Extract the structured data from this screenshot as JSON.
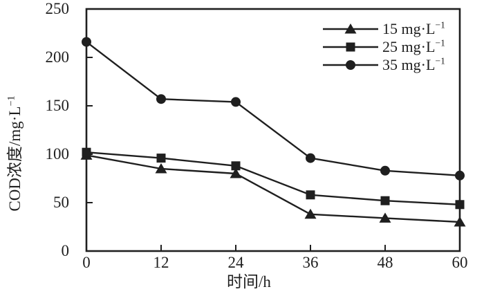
{
  "chart_data": {
    "type": "line",
    "title": "",
    "xlabel": "时间/h",
    "ylabel": "COD浓度/mg·L⁻¹",
    "xlim": [
      0,
      60
    ],
    "ylim": [
      0,
      250
    ],
    "x_ticks": [
      0,
      12,
      24,
      36,
      48,
      60
    ],
    "y_ticks": [
      0,
      50,
      100,
      150,
      200,
      250
    ],
    "grid": false,
    "legend_position": "top-right-inside",
    "line_color": "#1f1f1f",
    "background_color": "#ffffff",
    "x": [
      0,
      12,
      24,
      36,
      48,
      60
    ],
    "series": [
      {
        "name": "15 mg·L⁻¹",
        "marker": "triangle",
        "values": [
          99,
          85,
          80,
          38,
          34,
          30
        ]
      },
      {
        "name": "25 mg·L⁻¹",
        "marker": "square",
        "values": [
          102,
          96,
          88,
          58,
          52,
          48
        ]
      },
      {
        "name": "35 mg·L⁻¹",
        "marker": "circle",
        "values": [
          216,
          157,
          154,
          96,
          83,
          78
        ]
      }
    ]
  },
  "axes": {
    "x_tick_labels": [
      "0",
      "12",
      "24",
      "36",
      "48",
      "60"
    ],
    "y_tick_labels": [
      "0",
      "50",
      "100",
      "150",
      "200",
      "250"
    ],
    "x_title": "时间/h",
    "y_title_prefix": "COD浓度/mg·L",
    "y_title_sup": "−1"
  },
  "legend": {
    "items": [
      {
        "prefix": "15 mg·L",
        "sup": "−1",
        "marker": "triangle"
      },
      {
        "prefix": "25 mg·L",
        "sup": "−1",
        "marker": "square"
      },
      {
        "prefix": "35 mg·L",
        "sup": "−1",
        "marker": "circle"
      }
    ]
  }
}
